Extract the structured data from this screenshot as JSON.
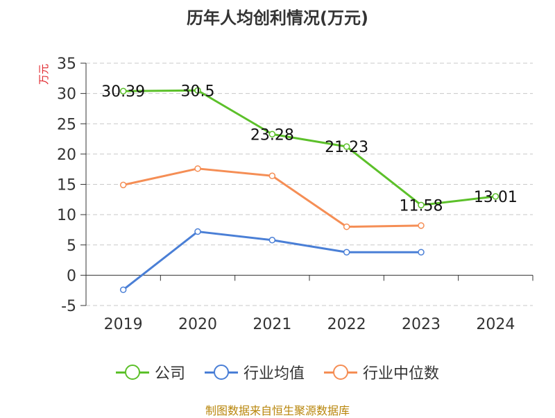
{
  "chart_data": {
    "type": "line",
    "title": "历年人均创利情况(万元)",
    "ylabel": "万元",
    "categories": [
      "2019",
      "2020",
      "2021",
      "2022",
      "2023",
      "2024"
    ],
    "ylim": [
      -5,
      35
    ],
    "yticks": [
      35,
      30,
      25,
      20,
      15,
      10,
      5,
      0,
      -5
    ],
    "grid": true,
    "legend_position": "bottom",
    "series": [
      {
        "name": "公司",
        "color": "#5cc02a",
        "values": [
          30.39,
          30.5,
          23.28,
          21.23,
          11.58,
          13.01
        ],
        "labels": [
          "30.39",
          "30.5",
          "23.28",
          "21.23",
          "11.58",
          "13.01"
        ]
      },
      {
        "name": "行业均值",
        "color": "#4a7fd6",
        "values": [
          -2.4,
          7.2,
          5.8,
          3.8,
          3.8,
          null
        ]
      },
      {
        "name": "行业中位数",
        "color": "#f58e55",
        "values": [
          14.9,
          17.6,
          16.4,
          8.0,
          8.2,
          null
        ]
      }
    ]
  },
  "source": "制图数据来自恒生聚源数据库"
}
